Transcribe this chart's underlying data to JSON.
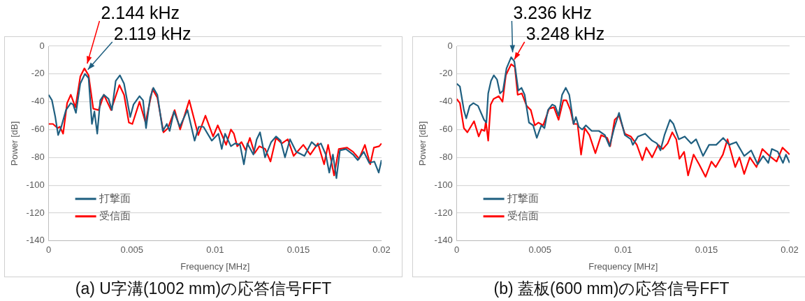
{
  "chart_data": [
    {
      "type": "line",
      "title": "(a) U字溝(1002 mm)の応答信号FFT",
      "xlabel": "Frequency [MHz]",
      "ylabel": "Power [dB]",
      "xlim": [
        0,
        0.02
      ],
      "xticks": [
        0,
        0.005,
        0.01,
        0.015,
        0.02
      ],
      "ylim": [
        -140,
        0
      ],
      "yticks": [
        0,
        -20,
        -40,
        -60,
        -80,
        -100,
        -120,
        -140
      ],
      "grid": "y",
      "legend": "bottom left",
      "marker": "none",
      "line_style": "solid",
      "annotations": [
        {
          "text": "2.144 kHz",
          "x": 0.002144,
          "y": -16
        },
        {
          "text": "2.119 kHz",
          "x": 0.002119,
          "y": -20
        }
      ],
      "series": [
        {
          "name": "打撃面",
          "color": "#1f5f80",
          "x": [
            0,
            0.0002,
            0.0004,
            0.00057,
            0.00076,
            0.00104,
            0.00133,
            0.00147,
            0.00164,
            0.0019,
            0.00218,
            0.0024,
            0.0026,
            0.00275,
            0.00292,
            0.0031,
            0.00332,
            0.0036,
            0.0038,
            0.00403,
            0.00428,
            0.00453,
            0.0049,
            0.0051,
            0.00546,
            0.00567,
            0.00585,
            0.0061,
            0.00629,
            0.00653,
            0.00686,
            0.0071,
            0.00727,
            0.00753,
            0.00788,
            0.00834,
            0.00877,
            0.00902,
            0.0093,
            0.0098,
            0.0102,
            0.0104,
            0.0106,
            0.01095,
            0.0112,
            0.0115,
            0.01173,
            0.01194,
            0.0123,
            0.0125,
            0.0127,
            0.013,
            0.01337,
            0.01366,
            0.01394,
            0.0142,
            0.0145,
            0.01487,
            0.01537,
            0.0158,
            0.01608,
            0.01636,
            0.01665,
            0.01686,
            0.01708,
            0.01729,
            0.0175,
            0.01786,
            0.01829,
            0.01857,
            0.01893,
            0.01926,
            0.01957,
            0.01983,
            0.02
          ],
          "values": [
            -35,
            -39,
            -51,
            -64,
            -58,
            -46,
            -41,
            -42,
            -48,
            -27,
            -20,
            -23,
            -56,
            -47,
            -63,
            -39,
            -35,
            -38,
            -46,
            -25,
            -21,
            -27,
            -51,
            -42,
            -36,
            -39,
            -59,
            -37,
            -30,
            -35,
            -61,
            -56,
            -61,
            -47,
            -58,
            -46,
            -68,
            -58,
            -58,
            -68,
            -63,
            -74,
            -63,
            -72,
            -70,
            -71,
            -85,
            -70,
            -78,
            -67,
            -62,
            -80,
            -69,
            -65,
            -68,
            -80,
            -67,
            -76,
            -79,
            -69,
            -72,
            -70,
            -78,
            -91,
            -78,
            -95,
            -75,
            -74,
            -78,
            -82,
            -76,
            -84,
            -83,
            -91,
            -82
          ]
        },
        {
          "name": "受信面",
          "color": "#ff0000",
          "x": [
            0,
            0.00026,
            0.00054,
            0.00068,
            0.00087,
            0.00111,
            0.00133,
            0.00161,
            0.0019,
            0.00215,
            0.0024,
            0.00268,
            0.003,
            0.00332,
            0.00375,
            0.00425,
            0.00453,
            0.00482,
            0.00503,
            0.00546,
            0.00582,
            0.00624,
            0.00653,
            0.0069,
            0.00717,
            0.00757,
            0.0079,
            0.00845,
            0.00899,
            0.00942,
            0.00988,
            0.01016,
            0.01038,
            0.01066,
            0.01095,
            0.01113,
            0.01133,
            0.01159,
            0.01184,
            0.01209,
            0.01237,
            0.01266,
            0.01301,
            0.01333,
            0.01366,
            0.01401,
            0.01437,
            0.01472,
            0.0153,
            0.01572,
            0.01618,
            0.01655,
            0.01679,
            0.01715,
            0.01743,
            0.01793,
            0.01829,
            0.01865,
            0.019,
            0.01932,
            0.01954,
            0.01986,
            0.02
          ],
          "values": [
            -56,
            -56,
            -59,
            -58,
            -63,
            -41,
            -35,
            -44,
            -22,
            -16,
            -21,
            -45,
            -46,
            -35,
            -46,
            -28,
            -35,
            -55,
            -56,
            -40,
            -55,
            -31,
            -37,
            -62,
            -59,
            -46,
            -60,
            -39,
            -64,
            -50,
            -65,
            -57,
            -63,
            -71,
            -60,
            -63,
            -72,
            -69,
            -75,
            -66,
            -77,
            -72,
            -74,
            -83,
            -66,
            -70,
            -67,
            -79,
            -71,
            -78,
            -70,
            -85,
            -71,
            -93,
            -74,
            -73,
            -76,
            -81,
            -71,
            -85,
            -73,
            -72,
            -70
          ]
        }
      ]
    },
    {
      "type": "line",
      "title": "(b) 蓋板(600 mm)の応答信号FFT",
      "xlabel": "Frequency [MHz]",
      "ylabel": "Power [dB]",
      "xlim": [
        0,
        0.02
      ],
      "xticks": [
        0,
        0.005,
        0.01,
        0.015,
        0.02
      ],
      "ylim": [
        -140,
        0
      ],
      "yticks": [
        0,
        -20,
        -40,
        -60,
        -80,
        -100,
        -120,
        -140
      ],
      "grid": "y",
      "legend": "bottom left",
      "marker": "none",
      "line_style": "solid",
      "annotations": [
        {
          "text": "3.236 kHz",
          "x": 0.003236,
          "y": -8
        },
        {
          "text": "3.248 kHz",
          "x": 0.003248,
          "y": -13
        }
      ],
      "series": [
        {
          "name": "打撃面",
          "color": "#1f5f80",
          "x": [
            0,
            0.00019,
            0.00043,
            0.00057,
            0.00078,
            0.001,
            0.00128,
            0.00164,
            0.00178,
            0.00189,
            0.00206,
            0.00223,
            0.00242,
            0.0026,
            0.00278,
            0.00299,
            0.00327,
            0.00346,
            0.0037,
            0.00389,
            0.00408,
            0.00434,
            0.00459,
            0.00481,
            0.00508,
            0.00527,
            0.00548,
            0.00574,
            0.00591,
            0.00612,
            0.00633,
            0.00655,
            0.00676,
            0.00702,
            0.00716,
            0.00733,
            0.00754,
            0.00776,
            0.00811,
            0.00854,
            0.0089,
            0.00918,
            0.00946,
            0.00975,
            0.0101,
            0.01046,
            0.01058,
            0.01089,
            0.01132,
            0.01174,
            0.01203,
            0.01224,
            0.01248,
            0.01281,
            0.01302,
            0.01334,
            0.0137,
            0.01409,
            0.01438,
            0.0148,
            0.01516,
            0.01559,
            0.01601,
            0.01637,
            0.01679,
            0.01727,
            0.01769,
            0.01808,
            0.01841,
            0.01872,
            0.01893,
            0.01929,
            0.0196,
            0.01978,
            0.02
          ],
          "values": [
            -27,
            -29,
            -46,
            -52,
            -43,
            -41,
            -43,
            -53,
            -55,
            -34,
            -25,
            -21,
            -24,
            -34,
            -32,
            -16,
            -8,
            -11,
            -32,
            -30,
            -35,
            -55,
            -57,
            -66,
            -57,
            -59,
            -46,
            -42,
            -43,
            -50,
            -35,
            -30,
            -35,
            -56,
            -51,
            -58,
            -60,
            -57,
            -61,
            -61,
            -64,
            -72,
            -59,
            -48,
            -64,
            -67,
            -71,
            -65,
            -63,
            -68,
            -70,
            -75,
            -64,
            -53,
            -56,
            -67,
            -65,
            -70,
            -67,
            -79,
            -71,
            -71,
            -66,
            -71,
            -69,
            -79,
            -75,
            -85,
            -79,
            -84,
            -74,
            -76,
            -84,
            -78,
            -84
          ]
        },
        {
          "name": "受信面",
          "color": "#ff0000",
          "x": [
            0,
            0.00019,
            0.00043,
            0.00064,
            0.00104,
            0.00132,
            0.00149,
            0.00167,
            0.00175,
            0.00189,
            0.00204,
            0.00221,
            0.00252,
            0.00275,
            0.00295,
            0.00327,
            0.00349,
            0.00366,
            0.00391,
            0.0042,
            0.00445,
            0.00469,
            0.0049,
            0.00519,
            0.00555,
            0.00584,
            0.00612,
            0.0064,
            0.00659,
            0.00683,
            0.00702,
            0.00726,
            0.00747,
            0.00769,
            0.00797,
            0.00833,
            0.00868,
            0.00904,
            0.00922,
            0.00949,
            0.00975,
            0.0101,
            0.01046,
            0.01082,
            0.01115,
            0.01139,
            0.01174,
            0.0121,
            0.01238,
            0.01267,
            0.01295,
            0.01319,
            0.01338,
            0.01366,
            0.0139,
            0.01423,
            0.01456,
            0.01495,
            0.0153,
            0.01556,
            0.01599,
            0.01627,
            0.01673,
            0.01698,
            0.01727,
            0.01761,
            0.01801,
            0.01836,
            0.01879,
            0.01922,
            0.01957,
            0.02
          ],
          "values": [
            -38,
            -41,
            -59,
            -62,
            -54,
            -65,
            -60,
            -61,
            -54,
            -68,
            -42,
            -38,
            -36,
            -40,
            -21,
            -13,
            -15,
            -35,
            -34,
            -43,
            -46,
            -57,
            -55,
            -57,
            -45,
            -44,
            -53,
            -39,
            -39,
            -46,
            -56,
            -56,
            -78,
            -59,
            -64,
            -77,
            -64,
            -66,
            -72,
            -53,
            -50,
            -63,
            -65,
            -71,
            -82,
            -73,
            -80,
            -71,
            -74,
            -70,
            -62,
            -67,
            -81,
            -76,
            -93,
            -78,
            -85,
            -94,
            -83,
            -87,
            -78,
            -67,
            -87,
            -80,
            -92,
            -80,
            -87,
            -74,
            -79,
            -83,
            -73,
            -78
          ]
        }
      ]
    }
  ]
}
